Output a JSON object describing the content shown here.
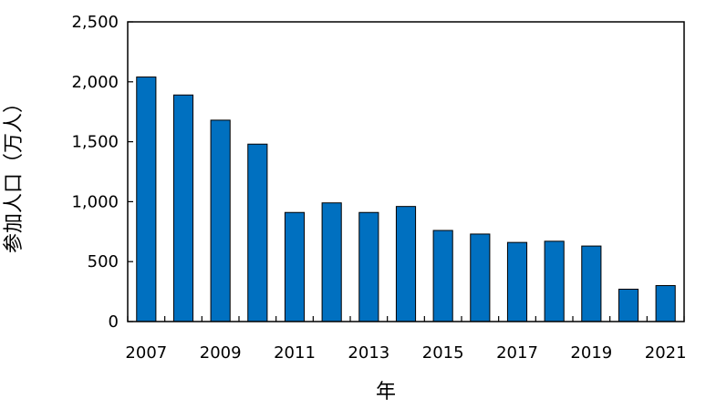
{
  "chart_data": {
    "type": "bar",
    "title": "",
    "xlabel": "年",
    "ylabel": "参加人口（万人）",
    "categories": [
      "2007",
      "2008",
      "2009",
      "2010",
      "2011",
      "2012",
      "2013",
      "2014",
      "2015",
      "2016",
      "2017",
      "2018",
      "2019",
      "2020",
      "2021"
    ],
    "values": [
      2040,
      1890,
      1680,
      1480,
      910,
      990,
      910,
      960,
      760,
      730,
      660,
      670,
      630,
      270,
      300
    ],
    "x_tick_labels": [
      "2007",
      "2009",
      "2011",
      "2013",
      "2015",
      "2017",
      "2019",
      "2021"
    ],
    "y_ticks": [
      0,
      500,
      1000,
      1500,
      2000,
      2500
    ],
    "y_tick_labels": [
      "0",
      "500",
      "1,000",
      "1,500",
      "2,000",
      "2,500"
    ],
    "ylim": [
      0,
      2500
    ],
    "grid": false,
    "legend": "none",
    "colors": {
      "bar_fill": "#0070C0",
      "bar_stroke": "#000000",
      "axis": "#000000"
    }
  }
}
